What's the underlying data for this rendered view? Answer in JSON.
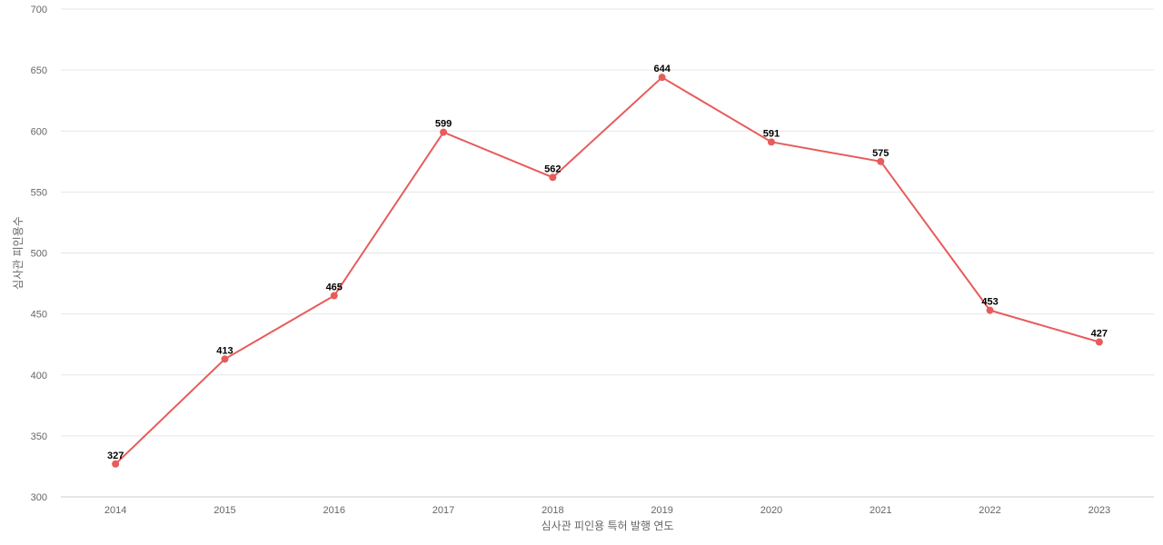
{
  "chart_data": {
    "type": "line",
    "title": "",
    "xlabel": "심사관 피인용 특허 발행 연도",
    "ylabel": "심사관 피인용수",
    "categories": [
      "2014",
      "2015",
      "2016",
      "2017",
      "2018",
      "2019",
      "2020",
      "2021",
      "2022",
      "2023"
    ],
    "series": [
      {
        "values": [
          327,
          413,
          465,
          599,
          562,
          644,
          591,
          575,
          453,
          427
        ],
        "color": "#e85b5b"
      }
    ],
    "ylim": [
      300,
      700
    ],
    "yticks": [
      300,
      350,
      400,
      450,
      500,
      550,
      600,
      650,
      700
    ],
    "grid": true,
    "legend": "none",
    "data_labels": true
  }
}
